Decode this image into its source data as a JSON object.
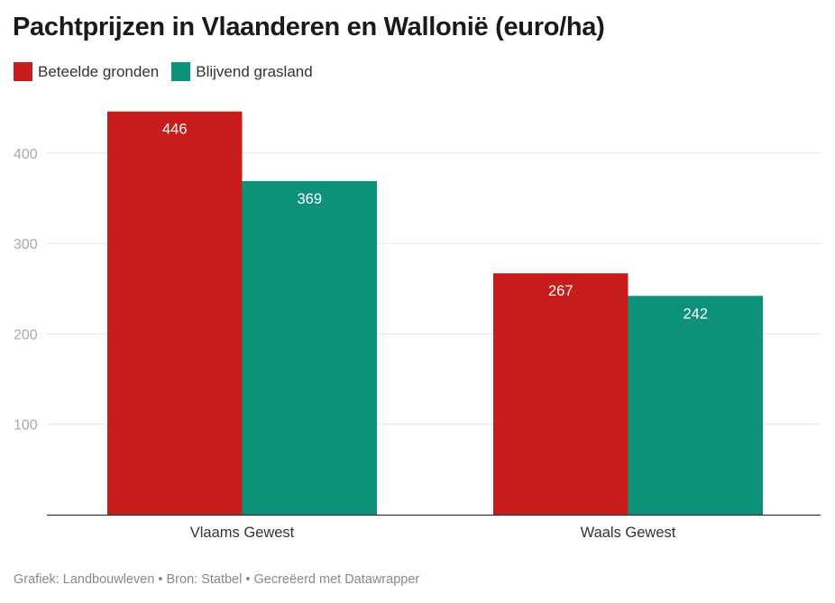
{
  "title": "Pachtprijzen in Vlaanderen en Wallonië (euro/ha)",
  "footer": "Grafiek: Landbouwleven • Bron: Statbel • Gecreëerd met Datawrapper",
  "chart_data": {
    "type": "bar",
    "title": "Pachtprijzen in Vlaanderen en Wallonië (euro/ha)",
    "categories": [
      "Vlaams Gewest",
      "Waals Gewest"
    ],
    "series": [
      {
        "name": "Beteelde gronden",
        "values": [
          446,
          267
        ],
        "color": "#c71e1d"
      },
      {
        "name": "Blijvend grasland",
        "values": [
          369,
          242
        ],
        "color": "#0d9179"
      }
    ],
    "yticks": [
      100,
      200,
      300,
      400
    ],
    "ylim": [
      0,
      450
    ],
    "grid": true,
    "legend": "top-left",
    "xlabel": "",
    "ylabel": ""
  }
}
